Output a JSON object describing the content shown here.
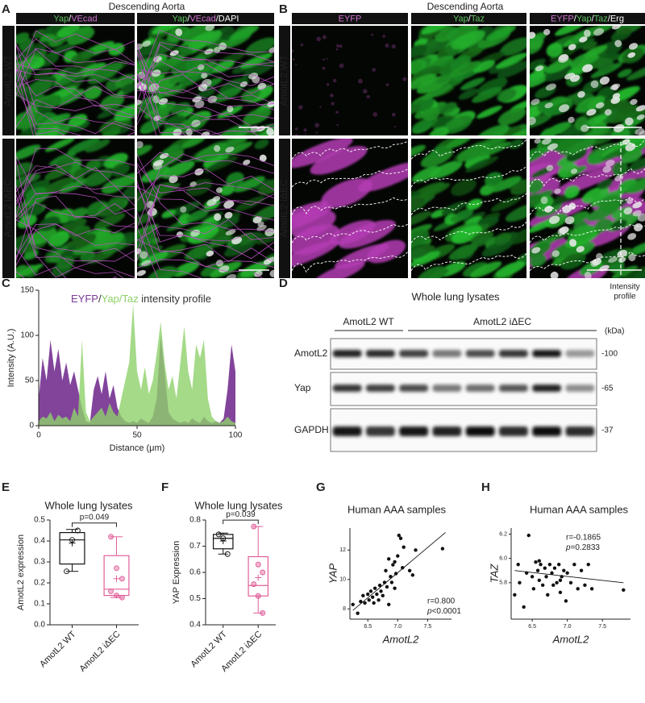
{
  "panel_a": {
    "letter": "A",
    "title": "Descending Aorta",
    "columns": [
      [
        {
          "text": "Yap",
          "color": "#5ec45e"
        },
        {
          "text": "/",
          "color": "#ffffff"
        },
        {
          "text": "VEcad",
          "color": "#d070d0"
        }
      ],
      [
        {
          "text": "Yap",
          "color": "#5ec45e"
        },
        {
          "text": "/",
          "color": "#ffffff"
        },
        {
          "text": "VEcad",
          "color": "#d070d0"
        },
        {
          "text": "/DAPI",
          "color": "#ffffff"
        }
      ]
    ],
    "rows": [
      "AmotL2 WT",
      "AmotL2 iΔEC"
    ]
  },
  "panel_b": {
    "letter": "B",
    "title": "Descending Aorta",
    "columns": [
      [
        {
          "text": "EYFP",
          "color": "#d070d0"
        }
      ],
      [
        {
          "text": "Yap",
          "color": "#5ec45e"
        },
        {
          "text": "/",
          "color": "#ffffff"
        },
        {
          "text": "Taz",
          "color": "#5ec45e"
        }
      ],
      [
        {
          "text": "EYFP",
          "color": "#d070d0"
        },
        {
          "text": "/",
          "color": "#ffffff"
        },
        {
          "text": "Yap",
          "color": "#5ec45e"
        },
        {
          "text": "/",
          "color": "#ffffff"
        },
        {
          "text": "Taz",
          "color": "#5ec45e"
        },
        {
          "text": "/Erg",
          "color": "#ffffff"
        }
      ]
    ],
    "rows": [
      "AmotL2 WT",
      "AmotL2 iΔEC"
    ],
    "annotation_lines": [
      "Intensity",
      "profile"
    ]
  },
  "panel_d": {
    "letter": "D",
    "title": "Whole lung lysates",
    "groups": [
      "AmotL2 WT",
      "AmotL2 iΔEC"
    ],
    "unit": "(kDa)",
    "rows": [
      {
        "label": "AmotL2",
        "marker": "-100"
      },
      {
        "label": "Yap",
        "marker": "-65"
      },
      {
        "label": "GAPDH",
        "marker": "-37"
      }
    ]
  },
  "chart_data": [
    {
      "letter": "C",
      "type": "area",
      "title_parts": [
        {
          "text": "EYFP",
          "color": "#7b3a96"
        },
        {
          "text": "/",
          "color": "#333333"
        },
        {
          "text": "Yap",
          "color": "#8fd16a"
        },
        {
          "text": "/",
          "color": "#8fd16a"
        },
        {
          "text": "Taz",
          "color": "#8fd16a"
        },
        {
          "text": " intensity profile",
          "color": "#333333"
        }
      ],
      "x": [
        0,
        2,
        4,
        6,
        8,
        10,
        12,
        14,
        16,
        18,
        20,
        22,
        24,
        26,
        28,
        30,
        32,
        34,
        36,
        38,
        40,
        42,
        44,
        46,
        48,
        50,
        52,
        54,
        56,
        58,
        60,
        62,
        64,
        66,
        68,
        70,
        72,
        74,
        76,
        78,
        80,
        82,
        84,
        86,
        88,
        90,
        92,
        94,
        96,
        98,
        100
      ],
      "series": [
        {
          "color": "#7b3a96",
          "values": [
            30,
            75,
            50,
            95,
            60,
            85,
            50,
            70,
            45,
            60,
            40,
            20,
            5,
            3,
            40,
            55,
            35,
            60,
            30,
            45,
            20,
            10,
            5,
            3,
            5,
            3,
            8,
            5,
            3,
            10,
            30,
            100,
            60,
            15,
            8,
            5,
            3,
            5,
            3,
            8,
            5,
            3,
            10,
            5,
            3,
            5,
            3,
            8,
            40,
            90,
            60
          ]
        },
        {
          "color": "#8fd16a",
          "values": [
            5,
            10,
            8,
            15,
            5,
            12,
            8,
            10,
            5,
            20,
            10,
            95,
            15,
            5,
            10,
            15,
            20,
            10,
            25,
            15,
            10,
            30,
            50,
            70,
            135,
            60,
            40,
            65,
            35,
            50,
            80,
            115,
            70,
            40,
            55,
            30,
            70,
            110,
            60,
            40,
            90,
            75,
            95,
            30,
            10,
            5,
            3,
            5,
            10,
            5,
            3
          ]
        }
      ],
      "xlim": [
        0,
        100
      ],
      "xticks": [
        0,
        50,
        100
      ],
      "ylim": [
        0,
        150
      ],
      "yticks": [
        0,
        50,
        100,
        150
      ],
      "x_label": "Distance (μm)",
      "y_label": "Intensity (A.U.)"
    },
    {
      "letter": "E",
      "type": "box",
      "title": "Whole lung lysates",
      "y_label": "AmotL2 expression",
      "p_label": "p=0.049",
      "categories": [
        "AmotL2 WT",
        "AmotL2 iΔEC"
      ],
      "boxes": [
        {
          "color": "#111111",
          "min": 0.255,
          "q1": 0.29,
          "median": 0.405,
          "q3": 0.44,
          "max": 0.455,
          "mean": 0.39,
          "points": [
            0.255,
            0.405,
            0.45
          ]
        },
        {
          "color": "#e0609a",
          "min": 0.13,
          "q1": 0.14,
          "median": 0.17,
          "q3": 0.33,
          "max": 0.42,
          "mean": 0.22,
          "points": [
            0.42,
            0.27,
            0.22,
            0.16,
            0.14,
            0.13
          ]
        }
      ],
      "ylim": [
        0,
        0.5
      ],
      "yticks": [
        {
          "value": 0,
          "label": "0.0"
        },
        0.1,
        0.2,
        0.3,
        0.4,
        0.5
      ]
    },
    {
      "letter": "F",
      "type": "box",
      "title": "Whole lung lysates",
      "y_label": "YAP Expression",
      "p_label": "p=0.039",
      "categories": [
        "AmotL2 WT",
        "AmotL2 iΔEC"
      ],
      "boxes": [
        {
          "color": "#111111",
          "min": 0.67,
          "q1": 0.69,
          "median": 0.73,
          "q3": 0.745,
          "max": 0.75,
          "mean": 0.72,
          "points": [
            0.745,
            0.73,
            0.67
          ]
        },
        {
          "color": "#e0609a",
          "min": 0.445,
          "q1": 0.51,
          "median": 0.55,
          "q3": 0.66,
          "max": 0.775,
          "mean": 0.58,
          "points": [
            0.775,
            0.63,
            0.6,
            0.555,
            0.51,
            0.445
          ]
        }
      ],
      "ylim": [
        0.4,
        0.8
      ],
      "yticks": [
        0.4,
        0.5,
        0.6,
        0.7,
        0.8
      ]
    },
    {
      "letter": "G",
      "type": "scatter",
      "title": "Human AAA samples",
      "x_label": "AmotL2",
      "y_label": "YAP",
      "stat_r": "r=0.800",
      "stat_p": [
        {
          "text": "p",
          "italic": true
        },
        {
          "text": "<0.0001",
          "italic": false
        }
      ],
      "x": [
        6.25,
        6.33,
        6.38,
        6.42,
        6.45,
        6.5,
        6.52,
        6.55,
        6.58,
        6.6,
        6.62,
        6.65,
        6.68,
        6.7,
        6.72,
        6.75,
        6.78,
        6.8,
        6.82,
        6.85,
        6.88,
        6.9,
        6.92,
        6.95,
        6.97,
        7.0,
        7.02,
        7.05,
        7.08,
        7.1,
        7.2,
        7.25,
        7.3,
        7.75,
        6.85,
        6.95
      ],
      "values": [
        8.3,
        7.7,
        8.5,
        8.9,
        8.4,
        9.0,
        8.6,
        9.2,
        8.8,
        8.4,
        9.4,
        9.0,
        8.6,
        9.6,
        9.2,
        8.9,
        9.8,
        10.6,
        9.5,
        11.4,
        10.2,
        9.8,
        11.0,
        11.2,
        10.4,
        11.6,
        13.0,
        12.8,
        10.8,
        12.2,
        10.6,
        10.3,
        12.0,
        12.1,
        8.3,
        9.4
      ],
      "fit_line": {
        "x": [
          6.25,
          7.8
        ],
        "y": [
          7.9,
          13.2
        ]
      },
      "xlim": [
        6.2,
        7.9
      ],
      "xticks": [
        6.5,
        {
          "value": 7,
          "label": "7.0"
        },
        7.5
      ],
      "ylim": [
        7.3,
        13.5
      ],
      "yticks": [
        8,
        10,
        12
      ]
    },
    {
      "letter": "H",
      "type": "scatter",
      "title": "Human AAA samples",
      "x_label": "AmotL2",
      "y_label": "TAZ",
      "stat_r": "r=-0.1865",
      "stat_p": [
        {
          "text": "p",
          "italic": true
        },
        {
          "text": "=0.2833",
          "italic": false
        }
      ],
      "x": [
        6.25,
        6.3,
        6.32,
        6.38,
        6.42,
        6.45,
        6.5,
        6.52,
        6.55,
        6.58,
        6.6,
        6.62,
        6.65,
        6.68,
        6.7,
        6.72,
        6.75,
        6.78,
        6.8,
        6.82,
        6.85,
        6.88,
        6.9,
        6.92,
        6.95,
        6.98,
        7.0,
        7.05,
        7.1,
        7.15,
        7.2,
        7.25,
        7.3,
        7.35,
        7.8,
        6.6,
        6.9
      ],
      "values": [
        5.7,
        5.95,
        5.8,
        5.6,
        5.88,
        6.19,
        5.85,
        5.75,
        5.97,
        5.9,
        5.82,
        5.95,
        5.78,
        5.92,
        5.85,
        5.7,
        5.95,
        5.88,
        5.78,
        5.92,
        5.8,
        5.95,
        5.72,
        5.85,
        5.9,
        5.65,
        5.88,
        5.8,
        5.95,
        5.75,
        5.9,
        5.78,
        5.95,
        5.75,
        5.74,
        5.98,
        5.82
      ],
      "fit_line": {
        "x": [
          6.25,
          7.8
        ],
        "y": [
          5.9,
          5.8
        ]
      },
      "xlim": [
        6.2,
        7.9
      ],
      "xticks": [
        6.5,
        {
          "value": 7,
          "label": "7.0"
        },
        7.5
      ],
      "ylim": [
        5.5,
        6.25
      ],
      "yticks": [
        5.8,
        {
          "value": 6,
          "label": "6.0"
        },
        6.2
      ]
    }
  ]
}
